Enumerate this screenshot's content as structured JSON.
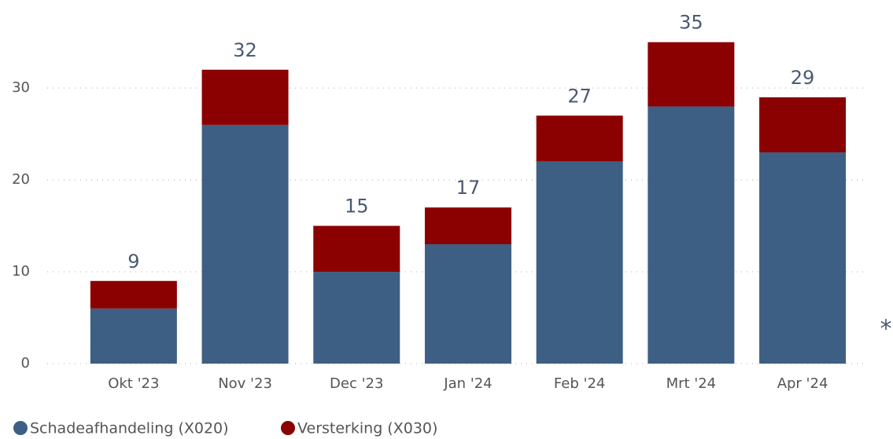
{
  "chart_data": {
    "type": "stacked_bar",
    "categories": [
      "Okt '23",
      "Nov '23",
      "Dec '23",
      "Jan '24",
      "Feb '24",
      "Mrt '24",
      "Apr '24"
    ],
    "series": [
      {
        "name": "Schadeafhandeling (X020)",
        "color": "#3d5f83",
        "values": [
          6,
          26,
          10,
          13,
          22,
          28,
          23
        ]
      },
      {
        "name": "Versterking (X030)",
        "color": "#8b0000",
        "values": [
          3,
          6,
          5,
          4,
          5,
          7,
          6
        ]
      }
    ],
    "totals": [
      9,
      32,
      15,
      17,
      27,
      35,
      29
    ],
    "ylim": [
      0,
      36
    ],
    "yticks": [
      0,
      10,
      20,
      30
    ],
    "grid": true,
    "annotation": "*"
  }
}
